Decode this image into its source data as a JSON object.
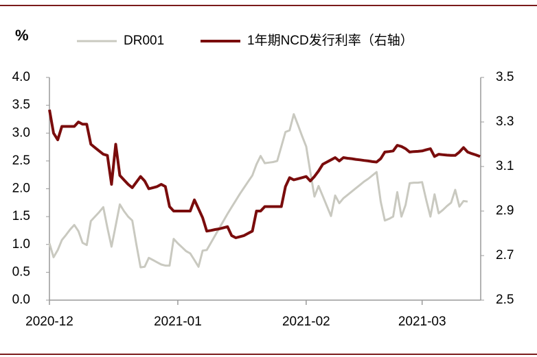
{
  "chart_data": {
    "type": "line",
    "y_label": "%",
    "categories": [
      "2020-12",
      null,
      null,
      null,
      null,
      null,
      null,
      null,
      null,
      null,
      null,
      null,
      null,
      null,
      null,
      null,
      null,
      null,
      null,
      null,
      null,
      null,
      null,
      null,
      null,
      null,
      null,
      null,
      null,
      null,
      null,
      "2021-01",
      null,
      null,
      null,
      null,
      null,
      null,
      null,
      null,
      null,
      null,
      null,
      null,
      null,
      null,
      null,
      null,
      null,
      null,
      null,
      null,
      null,
      null,
      null,
      null,
      null,
      null,
      null,
      null,
      null,
      null,
      "2021-02",
      null,
      null,
      null,
      null,
      null,
      null,
      null,
      null,
      null,
      null,
      null,
      null,
      null,
      null,
      null,
      null,
      null,
      null,
      null,
      null,
      null,
      null,
      null,
      null,
      null,
      null,
      null,
      "2021-03",
      null,
      null,
      null,
      null,
      null,
      null,
      null,
      null,
      null,
      null,
      null,
      null,
      null,
      null
    ],
    "series": [
      {
        "name": "DR001",
        "color": "#c9c9c0",
        "axis": "y",
        "values": [
          1.02,
          0.77,
          0.9,
          1.08,
          1.17,
          1.27,
          1.35,
          1.24,
          1.03,
          0.99,
          1.42,
          1.5,
          1.58,
          1.67,
          1.3,
          0.96,
          1.34,
          1.72,
          1.6,
          1.5,
          1.43,
          1.0,
          0.59,
          0.6,
          0.76,
          0.72,
          0.68,
          0.64,
          0.62,
          0.62,
          1.1,
          1.02,
          0.95,
          0.88,
          0.84,
          0.72,
          0.6,
          0.89,
          0.9,
          1.03,
          1.16,
          1.29,
          1.42,
          1.55,
          1.67,
          1.79,
          1.91,
          2.02,
          2.13,
          2.24,
          2.44,
          2.59,
          2.46,
          2.47,
          2.48,
          2.5,
          2.76,
          3.02,
          3.05,
          3.34,
          3.15,
          2.95,
          2.76,
          2.3,
          1.86,
          2.05,
          1.87,
          1.69,
          1.51,
          1.88,
          1.74,
          1.83,
          1.89,
          1.95,
          2.01,
          2.07,
          2.13,
          2.18,
          2.24,
          2.3,
          1.77,
          1.43,
          1.46,
          1.5,
          1.94,
          1.5,
          1.71,
          2.1,
          2.11,
          2.11,
          2.12,
          1.8,
          1.5,
          1.9,
          1.56,
          1.62,
          1.69,
          1.75,
          1.98,
          1.68,
          1.78,
          1.77,
          null,
          null,
          null
        ]
      },
      {
        "name": "1年期NCD发行利率（右轴）",
        "color": "#7a0c0c",
        "axis": "y2",
        "values": [
          3.355,
          3.25,
          3.22,
          3.28,
          3.28,
          3.28,
          3.28,
          3.3,
          3.29,
          3.29,
          3.2,
          3.185,
          3.17,
          3.155,
          3.15,
          3.02,
          3.2,
          3.06,
          3.04,
          3.02,
          3.005,
          3.03,
          3.055,
          3.035,
          3.0,
          3.005,
          3.01,
          3.02,
          3.01,
          2.92,
          2.9,
          2.9,
          2.9,
          2.9,
          2.9,
          2.95,
          2.91,
          2.87,
          2.81,
          2.813,
          2.817,
          2.82,
          2.825,
          2.83,
          2.79,
          2.78,
          2.785,
          2.79,
          2.8,
          2.81,
          2.9,
          2.9,
          2.92,
          2.92,
          2.92,
          2.92,
          2.92,
          3.01,
          3.05,
          3.04,
          3.045,
          3.05,
          3.055,
          3.035,
          3.055,
          3.08,
          3.11,
          3.12,
          3.13,
          3.14,
          3.125,
          3.14,
          3.137,
          3.135,
          3.132,
          3.13,
          3.127,
          3.125,
          3.122,
          3.12,
          3.135,
          3.165,
          3.167,
          3.17,
          3.195,
          3.19,
          3.18,
          3.165,
          3.167,
          3.168,
          3.17,
          3.175,
          3.18,
          3.145,
          3.155,
          3.153,
          3.151,
          3.15,
          3.15,
          3.165,
          3.185,
          3.165,
          3.158,
          3.152,
          3.145
        ]
      }
    ],
    "ylim": [
      0,
      4
    ],
    "yticks": [
      {
        "value": 0,
        "label": "0.0"
      },
      0.5,
      {
        "value": 1,
        "label": "1.0"
      },
      1.5,
      {
        "value": 2,
        "label": "2.0"
      },
      2.5,
      {
        "value": 3,
        "label": "3.0"
      },
      3.5,
      {
        "value": 4,
        "label": "4.0"
      }
    ],
    "y2lim": [
      2.5,
      3.5
    ],
    "y2ticks": [
      2.5,
      2.7,
      2.9,
      3.1,
      3.3,
      3.5
    ],
    "legend": "top"
  }
}
